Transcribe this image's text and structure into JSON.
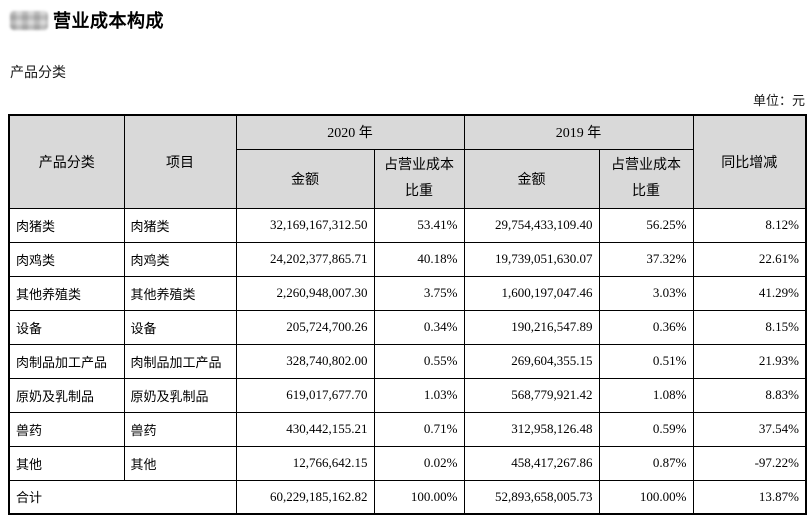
{
  "page": {
    "title": "营业成本构成",
    "subtitle": "产品分类",
    "unit_label": "单位：元",
    "redaction_note": "blurred-section-number"
  },
  "colors": {
    "header_bg": "#d9d9d9",
    "border": "#000000",
    "text": "#000000"
  },
  "table": {
    "header": {
      "product_category": "产品分类",
      "item": "项目",
      "year_2020": "2020 年",
      "year_2019": "2019 年",
      "amount": "金额",
      "cost_ratio": "占营业成本比重",
      "yoy_change": "同比增减"
    },
    "rows": [
      {
        "category": "肉猪类",
        "item": "肉猪类",
        "amount_2020": "32,169,167,312.50",
        "ratio_2020": "53.41%",
        "amount_2019": "29,754,433,109.40",
        "ratio_2019": "56.25%",
        "yoy": "8.12%"
      },
      {
        "category": "肉鸡类",
        "item": "肉鸡类",
        "amount_2020": "24,202,377,865.71",
        "ratio_2020": "40.18%",
        "amount_2019": "19,739,051,630.07",
        "ratio_2019": "37.32%",
        "yoy": "22.61%"
      },
      {
        "category": "其他养殖类",
        "item": "其他养殖类",
        "amount_2020": "2,260,948,007.30",
        "ratio_2020": "3.75%",
        "amount_2019": "1,600,197,047.46",
        "ratio_2019": "3.03%",
        "yoy": "41.29%"
      },
      {
        "category": "设备",
        "item": "设备",
        "amount_2020": "205,724,700.26",
        "ratio_2020": "0.34%",
        "amount_2019": "190,216,547.89",
        "ratio_2019": "0.36%",
        "yoy": "8.15%"
      },
      {
        "category": "肉制品加工产品",
        "item": "肉制品加工产品",
        "amount_2020": "328,740,802.00",
        "ratio_2020": "0.55%",
        "amount_2019": "269,604,355.15",
        "ratio_2019": "0.51%",
        "yoy": "21.93%"
      },
      {
        "category": "原奶及乳制品",
        "item": "原奶及乳制品",
        "amount_2020": "619,017,677.70",
        "ratio_2020": "1.03%",
        "amount_2019": "568,779,921.42",
        "ratio_2019": "1.08%",
        "yoy": "8.83%"
      },
      {
        "category": "兽药",
        "item": "兽药",
        "amount_2020": "430,442,155.21",
        "ratio_2020": "0.71%",
        "amount_2019": "312,958,126.48",
        "ratio_2019": "0.59%",
        "yoy": "37.54%"
      },
      {
        "category": "其他",
        "item": "其他",
        "amount_2020": "12,766,642.15",
        "ratio_2020": "0.02%",
        "amount_2019": "458,417,267.86",
        "ratio_2019": "0.87%",
        "yoy": "-97.22%"
      }
    ],
    "total_row": {
      "label": "合计",
      "amount_2020": "60,229,185,162.82",
      "ratio_2020": "100.00%",
      "amount_2019": "52,893,658,005.73",
      "ratio_2019": "100.00%",
      "yoy": "13.87%"
    }
  }
}
